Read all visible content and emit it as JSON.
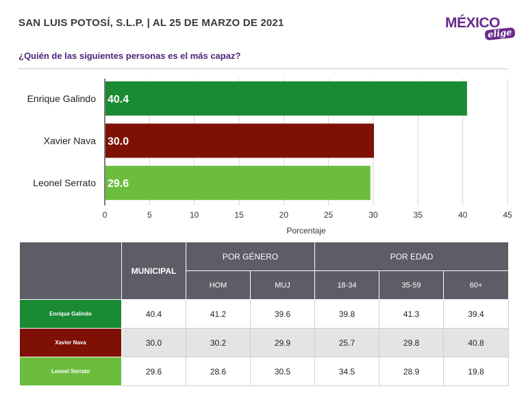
{
  "header": {
    "title": "SAN LUIS POTOSÍ, S.L.P. | AL 25 DE MARZO DE 2021",
    "logo_main": "MÉXICO",
    "logo_sub": "elige"
  },
  "question": "¿Quién de las siguientes personas es el más capaz?",
  "colors": {
    "galindo": "#1a8a35",
    "nava": "#7e1005",
    "serrato": "#6cbd3e",
    "header_bg": "#5c5d66",
    "accent": "#6a2a8c"
  },
  "chart_data": {
    "type": "bar",
    "orientation": "horizontal",
    "categories": [
      "Enrique Galindo",
      "Xavier Nava",
      "Leonel Serrato"
    ],
    "values": [
      40.4,
      30.0,
      29.6
    ],
    "value_labels": [
      "40.4",
      "30.0",
      "29.6"
    ],
    "colors": [
      "#1a8a35",
      "#7e1005",
      "#6cbd3e"
    ],
    "xlabel": "Porcentaje",
    "xlim": [
      0,
      45
    ],
    "xticks": [
      0,
      5,
      10,
      15,
      20,
      25,
      30,
      35,
      40,
      45
    ],
    "grid": true
  },
  "table": {
    "municipal_label": "MUNICIPAL",
    "gender_label": "POR GÉNERO",
    "age_label": "POR EDAD",
    "subheaders": [
      "HOM",
      "MUJ",
      "18-34",
      "35-59",
      "60+"
    ],
    "rows": [
      {
        "name": "Enrique Galindo",
        "color": "#1a8a35",
        "values": [
          "40.4",
          "41.2",
          "39.6",
          "39.8",
          "41.3",
          "39.4"
        ]
      },
      {
        "name": "Xavier Nava",
        "color": "#7e1005",
        "values": [
          "30.0",
          "30.2",
          "29.9",
          "25.7",
          "29.8",
          "40.8"
        ]
      },
      {
        "name": "Leonel Serrato",
        "color": "#6cbd3e",
        "values": [
          "29.6",
          "28.6",
          "30.5",
          "34.5",
          "28.9",
          "19.8"
        ]
      }
    ]
  }
}
